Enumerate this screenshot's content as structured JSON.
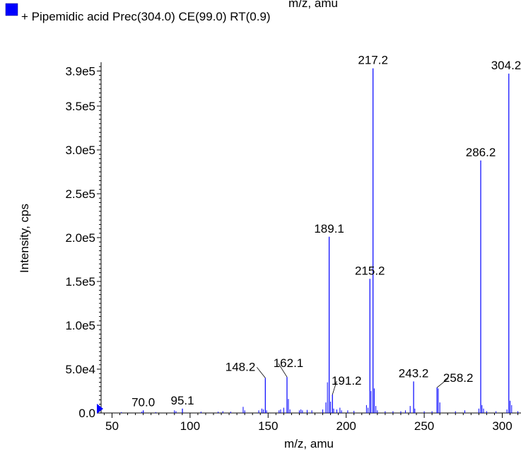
{
  "top_partial_label": "m/z, amu",
  "legend": {
    "text": "+ Pipemidic acid Prec(304.0) CE(99.0) RT(0.9)",
    "color": "#0000ff"
  },
  "chart_data": {
    "type": "bar",
    "subtype": "mass-spectrum-stick",
    "xlabel": "m/z, amu",
    "ylabel": "Intensity, cps",
    "xlim": [
      43,
      312
    ],
    "ylim": [
      0,
      400000
    ],
    "x_ticks": [
      50,
      100,
      150,
      200,
      250,
      300
    ],
    "x_tick_labels": [
      "50",
      "100",
      "150",
      "200",
      "250",
      "300"
    ],
    "y_ticks": [
      0,
      50000,
      100000,
      150000,
      200000,
      250000,
      300000,
      350000,
      390000
    ],
    "y_tick_labels": [
      "0.0",
      "5.0e4",
      "1.0e5",
      "1.5e5",
      "2.0e5",
      "2.5e5",
      "3.0e5",
      "3.5e5",
      "3.9e5"
    ],
    "series_color": "#0000ff",
    "precursor_marker_color": "#0000ff",
    "grid": false,
    "labeled_peaks": [
      {
        "x": 70.0,
        "y": 3000,
        "label": "70.0"
      },
      {
        "x": 95.1,
        "y": 5000,
        "label": "95.1"
      },
      {
        "x": 148.2,
        "y": 40000,
        "label": "148.2"
      },
      {
        "x": 162.1,
        "y": 41000,
        "label": "162.1"
      },
      {
        "x": 189.1,
        "y": 201000,
        "label": "189.1"
      },
      {
        "x": 191.2,
        "y": 21000,
        "label": "191.2"
      },
      {
        "x": 215.2,
        "y": 153000,
        "label": "215.2"
      },
      {
        "x": 217.2,
        "y": 393000,
        "label": "217.2"
      },
      {
        "x": 243.2,
        "y": 36000,
        "label": "243.2"
      },
      {
        "x": 258.2,
        "y": 29000,
        "label": "258.2"
      },
      {
        "x": 286.2,
        "y": 288000,
        "label": "286.2"
      },
      {
        "x": 304.2,
        "y": 387000,
        "label": "304.2"
      }
    ],
    "minor_peaks": [
      {
        "x": 56,
        "y": 1000
      },
      {
        "x": 69,
        "y": 1500
      },
      {
        "x": 78,
        "y": 1000
      },
      {
        "x": 90,
        "y": 3000
      },
      {
        "x": 91,
        "y": 2000
      },
      {
        "x": 107,
        "y": 1500
      },
      {
        "x": 118,
        "y": 1500
      },
      {
        "x": 121,
        "y": 2000
      },
      {
        "x": 126,
        "y": 1500
      },
      {
        "x": 134,
        "y": 7000
      },
      {
        "x": 135,
        "y": 3000
      },
      {
        "x": 144,
        "y": 3000
      },
      {
        "x": 146,
        "y": 5000
      },
      {
        "x": 147,
        "y": 4000
      },
      {
        "x": 149,
        "y": 3000
      },
      {
        "x": 157,
        "y": 3000
      },
      {
        "x": 158,
        "y": 4000
      },
      {
        "x": 160,
        "y": 6000
      },
      {
        "x": 163,
        "y": 16000
      },
      {
        "x": 164,
        "y": 4000
      },
      {
        "x": 170,
        "y": 3000
      },
      {
        "x": 171,
        "y": 4000
      },
      {
        "x": 172,
        "y": 3000
      },
      {
        "x": 175,
        "y": 3500
      },
      {
        "x": 178,
        "y": 3000
      },
      {
        "x": 185,
        "y": 4000
      },
      {
        "x": 187,
        "y": 12000
      },
      {
        "x": 188,
        "y": 35000
      },
      {
        "x": 190,
        "y": 13000
      },
      {
        "x": 192,
        "y": 5000
      },
      {
        "x": 194,
        "y": 4000
      },
      {
        "x": 196,
        "y": 6000
      },
      {
        "x": 197,
        "y": 3000
      },
      {
        "x": 201,
        "y": 3000
      },
      {
        "x": 205,
        "y": 2500
      },
      {
        "x": 213,
        "y": 9000
      },
      {
        "x": 214,
        "y": 6000
      },
      {
        "x": 216,
        "y": 25000
      },
      {
        "x": 218,
        "y": 28000
      },
      {
        "x": 219,
        "y": 8000
      },
      {
        "x": 220,
        "y": 3000
      },
      {
        "x": 225,
        "y": 2000
      },
      {
        "x": 230,
        "y": 2000
      },
      {
        "x": 235,
        "y": 2000
      },
      {
        "x": 238,
        "y": 3000
      },
      {
        "x": 241,
        "y": 8000
      },
      {
        "x": 244,
        "y": 5000
      },
      {
        "x": 250,
        "y": 2000
      },
      {
        "x": 255,
        "y": 2000
      },
      {
        "x": 259,
        "y": 28000
      },
      {
        "x": 260,
        "y": 12000
      },
      {
        "x": 270,
        "y": 2000
      },
      {
        "x": 276,
        "y": 3000
      },
      {
        "x": 285,
        "y": 5000
      },
      {
        "x": 287,
        "y": 9000
      },
      {
        "x": 288,
        "y": 5000
      },
      {
        "x": 290,
        "y": 2000
      },
      {
        "x": 296,
        "y": 2000
      },
      {
        "x": 303,
        "y": 4000
      },
      {
        "x": 305,
        "y": 14000
      },
      {
        "x": 306,
        "y": 9000
      },
      {
        "x": 310,
        "y": 2000
      }
    ]
  }
}
